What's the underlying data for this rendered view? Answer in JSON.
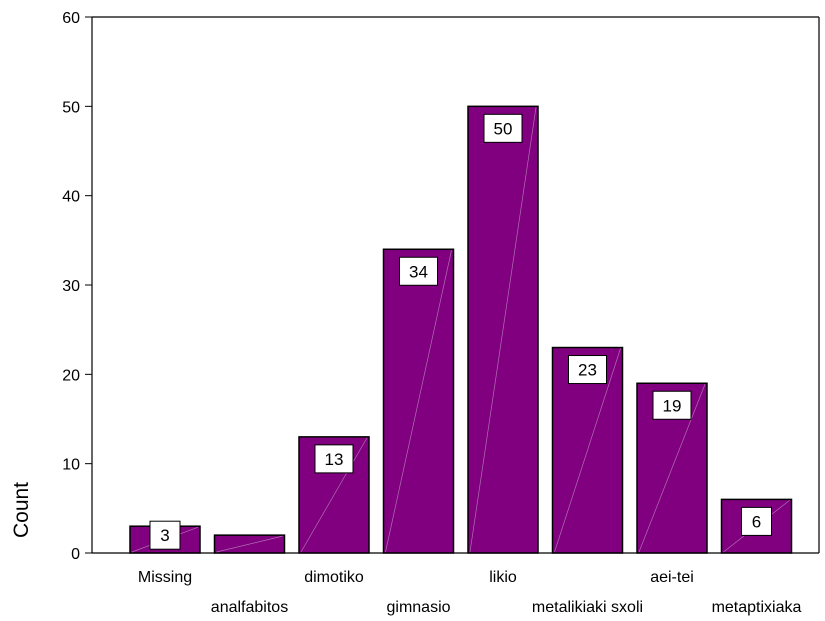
{
  "chart_data": {
    "type": "bar",
    "categories": [
      "Missing",
      "analfabitos",
      "dimotiko",
      "gimnasio",
      "likio",
      "metalikiaki sxoli",
      "aei-tei",
      "metaptixiaka"
    ],
    "values": [
      3,
      2,
      13,
      34,
      50,
      23,
      19,
      6
    ],
    "data_labels": [
      "3",
      "",
      "13",
      "34",
      "50",
      "23",
      "19",
      "6"
    ],
    "title": "",
    "xlabel": "",
    "ylabel": "Count",
    "ylim": [
      0,
      60
    ],
    "yticks": [
      "0",
      "10",
      "20",
      "30",
      "40",
      "50",
      "60"
    ],
    "grid": false,
    "bar_color": "#800080",
    "bar_edge_color": "#000000"
  }
}
